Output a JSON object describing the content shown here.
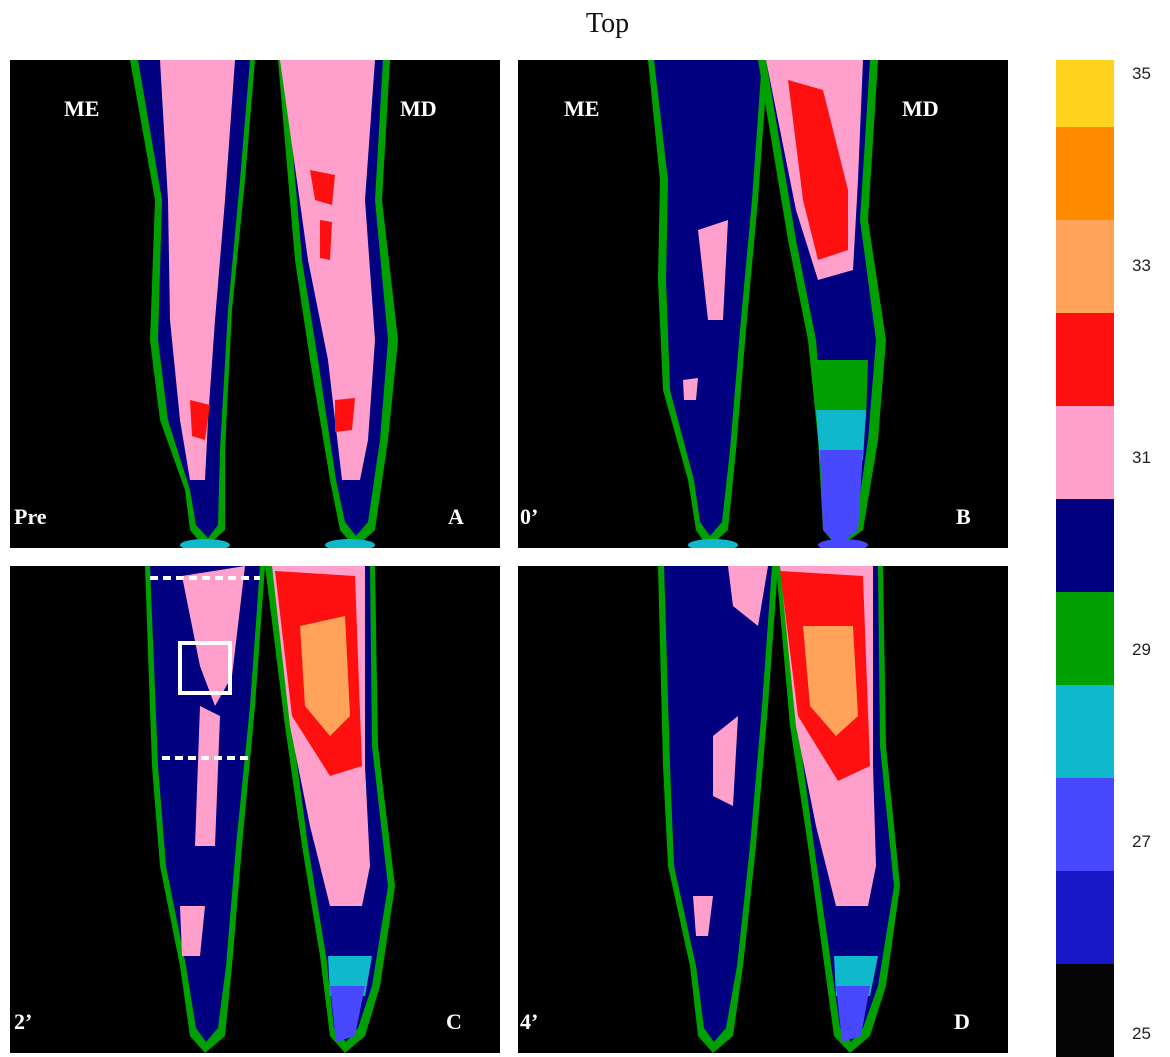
{
  "title": "Top",
  "panels": [
    {
      "id": "A",
      "letter": "A",
      "time": "Pre",
      "left_label": "ME",
      "right_label": "MD"
    },
    {
      "id": "B",
      "letter": "B",
      "time": "0’",
      "left_label": "ME",
      "right_label": "MD"
    },
    {
      "id": "C",
      "letter": "C",
      "time": "2’",
      "left_label": "",
      "right_label": ""
    },
    {
      "id": "D",
      "letter": "D",
      "time": "4’",
      "left_label": "",
      "right_label": ""
    }
  ],
  "colorbar": {
    "ticks": [
      "35",
      "33",
      "31",
      "29",
      "27",
      "25"
    ],
    "colors": [
      "#ffd21e",
      "#ff8a00",
      "#ffa35a",
      "#ff1010",
      "#ffa0cc",
      "#000080",
      "#00a000",
      "#10b8cc",
      "#4848ff",
      "#1818c8",
      "#050505"
    ]
  }
}
